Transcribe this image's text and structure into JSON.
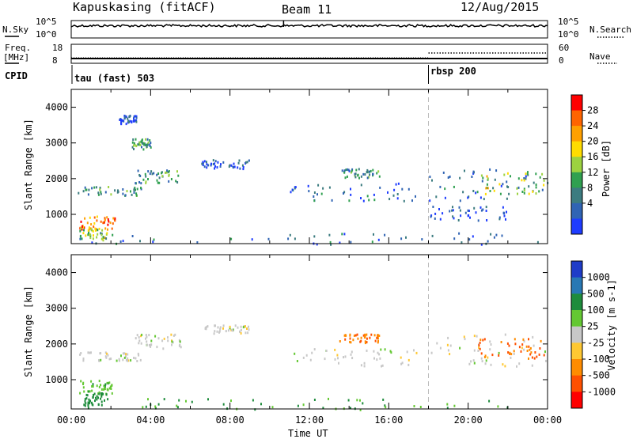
{
  "header": {
    "station": "Kapuskasing (fitACF)",
    "beam": "Beam 11",
    "date": "12/Aug/2015"
  },
  "aux_panels": {
    "nsky": {
      "label": "N.Sky",
      "ticks": [
        "10^5",
        "10^0"
      ],
      "right_ticks": [
        "10^5",
        "10^0"
      ],
      "right_label": "N.Search"
    },
    "freq": {
      "label_line1": "Freq.",
      "label_line2": "[MHz]",
      "ticks": [
        "18",
        "8"
      ],
      "right_ticks": [
        "60",
        "0"
      ],
      "right_label": "Nave"
    },
    "cpid": {
      "label": "CPID",
      "modes": [
        {
          "name": "tau (fast) 503",
          "start_hour": 0
        },
        {
          "name": "rbsp 200",
          "start_hour": 18
        }
      ]
    }
  },
  "chart_data": [
    {
      "type": "heatmap",
      "name": "power",
      "ylabel": "Slant Range [km]",
      "x_range_hours": [
        0,
        24
      ],
      "ylim": [
        180,
        4500
      ],
      "yticks": [
        "1000",
        "2000",
        "3000",
        "4000"
      ],
      "colorbar": {
        "label": "Power [dB]",
        "ticks": [
          "28",
          "24",
          "20",
          "16",
          "12",
          "8",
          "4"
        ],
        "colors": [
          "#ff0000",
          "#ff6400",
          "#ffa000",
          "#ffdc00",
          "#9cd240",
          "#30a050",
          "#3c7c80",
          "#3064b4",
          "#1e3cff"
        ]
      },
      "echo_regions": [
        {
          "t": [
            0.4,
            2.2
          ],
          "r": [
            600,
            1000
          ],
          "level": 26
        },
        {
          "t": [
            0.4,
            1.8
          ],
          "r": [
            300,
            650
          ],
          "level": 18
        },
        {
          "t": [
            0.3,
            3.5
          ],
          "r": [
            1550,
            1800
          ],
          "level": 12
        },
        {
          "t": [
            3.2,
            5.5
          ],
          "r": [
            1900,
            2300
          ],
          "level": 14
        },
        {
          "t": [
            6.5,
            9.0
          ],
          "r": [
            2300,
            2550
          ],
          "level": 8
        },
        {
          "t": [
            3.0,
            4.0
          ],
          "r": [
            2850,
            3150
          ],
          "level": 14
        },
        {
          "t": [
            2.4,
            3.3
          ],
          "r": [
            3550,
            3800
          ],
          "level": 8
        },
        {
          "t": [
            11.0,
            17.5
          ],
          "r": [
            1400,
            1900
          ],
          "level": 10
        },
        {
          "t": [
            13.5,
            15.5
          ],
          "r": [
            2050,
            2300
          ],
          "level": 12
        },
        {
          "t": [
            18.0,
            24.0
          ],
          "r": [
            1400,
            2300
          ],
          "level": 10
        },
        {
          "t": [
            20.5,
            23.8
          ],
          "r": [
            1600,
            2200
          ],
          "level": 18
        },
        {
          "t": [
            18.0,
            22.0
          ],
          "r": [
            850,
            1250
          ],
          "level": 8
        },
        {
          "t": [
            0.0,
            24.0
          ],
          "r": [
            180,
            500
          ],
          "level": 10
        }
      ]
    },
    {
      "type": "heatmap",
      "name": "velocity",
      "ylabel": "Slant Range [km]",
      "xlabel": "Time UT",
      "x_range_hours": [
        0,
        24
      ],
      "xticks": [
        "00:00",
        "04:00",
        "08:00",
        "12:00",
        "16:00",
        "20:00",
        "00:00"
      ],
      "ylim": [
        180,
        4500
      ],
      "yticks": [
        "1000",
        "2000",
        "3000",
        "4000"
      ],
      "colorbar": {
        "label": "Velocity [m s-1]",
        "ticks": [
          "1000",
          "500",
          "100",
          "25",
          "-25",
          "-100",
          "-500",
          "-1000"
        ],
        "colors": [
          "#1e3cc8",
          "#2878b4",
          "#1e8c3c",
          "#64c832",
          "#c8c8c8",
          "#ffc832",
          "#ff8c00",
          "#ff5000",
          "#ff0000"
        ]
      },
      "echo_regions": [
        {
          "t": [
            0.4,
            2.2
          ],
          "r": [
            600,
            1000
          ],
          "level": 50
        },
        {
          "t": [
            0.6,
            1.8
          ],
          "r": [
            300,
            650
          ],
          "level": 200
        },
        {
          "t": [
            0.3,
            3.5
          ],
          "r": [
            1550,
            1800
          ],
          "level": 0
        },
        {
          "t": [
            3.2,
            5.5
          ],
          "r": [
            1900,
            2300
          ],
          "level": 0
        },
        {
          "t": [
            6.5,
            9.0
          ],
          "r": [
            2300,
            2550
          ],
          "level": 0
        },
        {
          "t": [
            11.0,
            17.5
          ],
          "r": [
            1400,
            1900
          ],
          "level": 0
        },
        {
          "t": [
            13.5,
            15.5
          ],
          "r": [
            2050,
            2300
          ],
          "level": -300
        },
        {
          "t": [
            18.0,
            24.0
          ],
          "r": [
            1400,
            2300
          ],
          "level": 0
        },
        {
          "t": [
            20.5,
            23.8
          ],
          "r": [
            1600,
            2200
          ],
          "level": -300
        },
        {
          "t": [
            0.0,
            24.0
          ],
          "r": [
            180,
            500
          ],
          "level": 60
        }
      ]
    }
  ]
}
